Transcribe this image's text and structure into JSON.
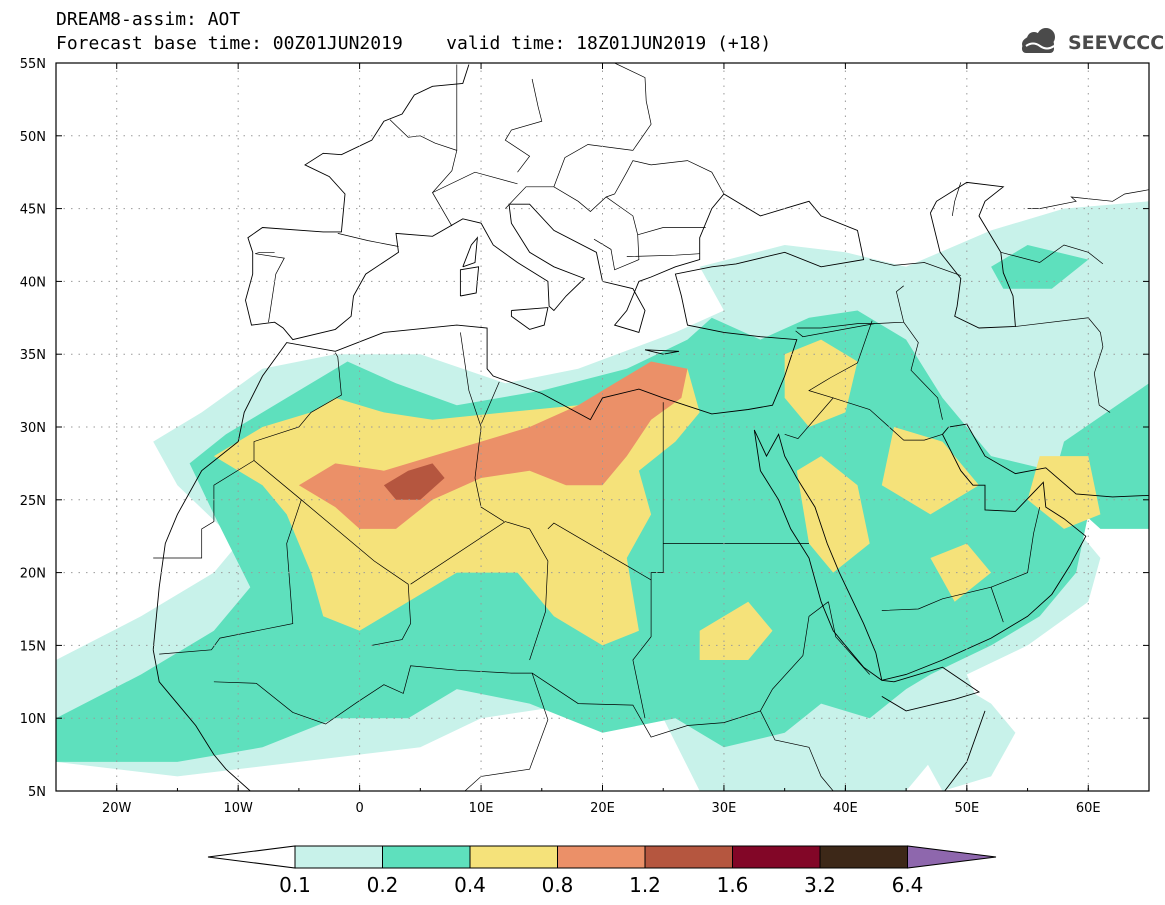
{
  "title": {
    "line1": "DREAM8-assim: AOT",
    "base_time": "Forecast base time: 00Z01JUN2019",
    "valid_time": "valid time: 18Z01JUN2019 (+18)"
  },
  "logo": {
    "text": "SEEVCCC",
    "icon": "cloud-logo-icon"
  },
  "axes": {
    "lon_range": [
      -25,
      65
    ],
    "lat_range": [
      5,
      55
    ],
    "lon_ticks": [
      {
        "v": -20,
        "label": "20W"
      },
      {
        "v": -10,
        "label": "10W"
      },
      {
        "v": 0,
        "label": "0"
      },
      {
        "v": 10,
        "label": "10E"
      },
      {
        "v": 20,
        "label": "20E"
      },
      {
        "v": 30,
        "label": "30E"
      },
      {
        "v": 40,
        "label": "40E"
      },
      {
        "v": 50,
        "label": "50E"
      },
      {
        "v": 60,
        "label": "60E"
      }
    ],
    "lat_ticks": [
      {
        "v": 5,
        "label": "5N"
      },
      {
        "v": 10,
        "label": "10N"
      },
      {
        "v": 15,
        "label": "15N"
      },
      {
        "v": 20,
        "label": "20N"
      },
      {
        "v": 25,
        "label": "25N"
      },
      {
        "v": 30,
        "label": "30N"
      },
      {
        "v": 35,
        "label": "35N"
      },
      {
        "v": 40,
        "label": "40N"
      },
      {
        "v": 45,
        "label": "45N"
      },
      {
        "v": 50,
        "label": "50N"
      },
      {
        "v": 55,
        "label": "55N"
      }
    ],
    "grid": "dotted"
  },
  "colorbar": {
    "labels": [
      "0.1",
      "0.2",
      "0.4",
      "0.8",
      "1.2",
      "1.6",
      "3.2",
      "6.4"
    ],
    "colors": [
      "#ffffff",
      "#c8f2ea",
      "#5ee0bd",
      "#f5e27a",
      "#eb9068",
      "#b5563f",
      "#820627",
      "#3d2818",
      "#8e67ad"
    ]
  },
  "field": {
    "levels": [
      {
        "level": 1,
        "color": "#c8f2ea",
        "polygons": [
          [
            [
              -25,
              14
            ],
            [
              -18,
              17
            ],
            [
              -12,
              20
            ],
            [
              -10,
              22
            ],
            [
              -15,
              26
            ],
            [
              -17,
              29
            ],
            [
              -13,
              31
            ],
            [
              -8,
              34
            ],
            [
              -2,
              35
            ],
            [
              5,
              35
            ],
            [
              12,
              33
            ],
            [
              18,
              34
            ],
            [
              26,
              36.5
            ],
            [
              30,
              38
            ],
            [
              28,
              41
            ],
            [
              35,
              42.5
            ],
            [
              40,
              42
            ],
            [
              45,
              41
            ],
            [
              52,
              43.5
            ],
            [
              58,
              45
            ],
            [
              65,
              45.5
            ],
            [
              65,
              33
            ],
            [
              60,
              30
            ],
            [
              57,
              25
            ],
            [
              61,
              21
            ],
            [
              60,
              18
            ],
            [
              55,
              15
            ],
            [
              50,
              13
            ],
            [
              52,
              9
            ],
            [
              47,
              7
            ],
            [
              45,
              5
            ],
            [
              28,
              5
            ],
            [
              25,
              10
            ],
            [
              18,
              11
            ],
            [
              10,
              10
            ],
            [
              5,
              8
            ],
            [
              -5,
              7
            ],
            [
              -15,
              6
            ],
            [
              -25,
              7
            ]
          ],
          [
            [
              45,
              16
            ],
            [
              48,
              13
            ],
            [
              52,
              11
            ],
            [
              54,
              9
            ],
            [
              52,
              6
            ],
            [
              48,
              5
            ],
            [
              46,
              8
            ],
            [
              44,
              12
            ]
          ]
        ]
      },
      {
        "level": 2,
        "color": "#5ee0bd",
        "polygons": [
          [
            [
              -25,
              10
            ],
            [
              -18,
              13
            ],
            [
              -12,
              16
            ],
            [
              -9,
              19
            ],
            [
              -12,
              24
            ],
            [
              -14,
              27.5
            ],
            [
              -11,
              29.5
            ],
            [
              -6,
              32
            ],
            [
              -1,
              34.5
            ],
            [
              3,
              33
            ],
            [
              8,
              31.5
            ],
            [
              15,
              32.5
            ],
            [
              22,
              34
            ],
            [
              27,
              36
            ],
            [
              29,
              37.5
            ],
            [
              33,
              36
            ],
            [
              37,
              37.5
            ],
            [
              41,
              38
            ],
            [
              45,
              36
            ],
            [
              48,
              32
            ],
            [
              52,
              28
            ],
            [
              57,
              27
            ],
            [
              60,
              24
            ],
            [
              59,
              20
            ],
            [
              56,
              17
            ],
            [
              52,
              15
            ],
            [
              47,
              13
            ],
            [
              45,
              12
            ],
            [
              42,
              10
            ],
            [
              38,
              11
            ],
            [
              35,
              9
            ],
            [
              30,
              8
            ],
            [
              26,
              10
            ],
            [
              20,
              9
            ],
            [
              14,
              11
            ],
            [
              8,
              12
            ],
            [
              4,
              10
            ],
            [
              -2,
              10
            ],
            [
              -8,
              8
            ],
            [
              -15,
              7
            ],
            [
              -25,
              7
            ]
          ],
          [
            [
              52,
              41
            ],
            [
              55,
              42.5
            ],
            [
              60,
              41.5
            ],
            [
              57,
              39.5
            ],
            [
              53,
              39.5
            ]
          ],
          [
            [
              58,
              29
            ],
            [
              65,
              33
            ],
            [
              65,
              23
            ],
            [
              61,
              23
            ],
            [
              57,
              26
            ]
          ]
        ]
      },
      {
        "level": 3,
        "color": "#f5e27a",
        "polygons": [
          [
            [
              -12,
              28
            ],
            [
              -8,
              30
            ],
            [
              -4,
              31
            ],
            [
              -2,
              32
            ],
            [
              2,
              31
            ],
            [
              6,
              30.5
            ],
            [
              12,
              31
            ],
            [
              18,
              31.5
            ],
            [
              24,
              34
            ],
            [
              27,
              34
            ],
            [
              28,
              31
            ],
            [
              26,
              29
            ],
            [
              23,
              27
            ],
            [
              24,
              24
            ],
            [
              22,
              21
            ],
            [
              23,
              16
            ],
            [
              20,
              15
            ],
            [
              16,
              17
            ],
            [
              13,
              20
            ],
            [
              8,
              20
            ],
            [
              4,
              18
            ],
            [
              0,
              16
            ],
            [
              -3,
              17
            ],
            [
              -4,
              20
            ],
            [
              -6,
              24
            ],
            [
              -8,
              26
            ]
          ],
          [
            [
              35,
              35
            ],
            [
              38,
              36
            ],
            [
              41,
              34.5
            ],
            [
              40,
              31
            ],
            [
              37,
              30
            ],
            [
              35,
              32
            ]
          ],
          [
            [
              44,
              30
            ],
            [
              48,
              29
            ],
            [
              51,
              26
            ],
            [
              47,
              24
            ],
            [
              43,
              26
            ]
          ],
          [
            [
              36,
              27
            ],
            [
              38,
              28
            ],
            [
              41,
              26
            ],
            [
              42,
              22
            ],
            [
              39,
              20
            ],
            [
              37,
              22
            ]
          ],
          [
            [
              28,
              16
            ],
            [
              32,
              18
            ],
            [
              34,
              16
            ],
            [
              32,
              14
            ],
            [
              28,
              14
            ]
          ],
          [
            [
              56,
              28
            ],
            [
              60,
              28
            ],
            [
              61,
              24
            ],
            [
              58,
              23
            ],
            [
              55,
              25
            ]
          ],
          [
            [
              47,
              21
            ],
            [
              50,
              22
            ],
            [
              52,
              20
            ],
            [
              49,
              18
            ]
          ]
        ]
      },
      {
        "level": 4,
        "color": "#eb9068",
        "polygons": [
          [
            [
              -5,
              26
            ],
            [
              -2,
              27.5
            ],
            [
              2,
              27
            ],
            [
              6,
              28
            ],
            [
              10,
              29
            ],
            [
              14,
              30
            ],
            [
              18,
              31.5
            ],
            [
              21,
              33
            ],
            [
              24,
              34.5
            ],
            [
              27,
              34
            ],
            [
              26.5,
              32
            ],
            [
              24,
              30.5
            ],
            [
              22,
              28
            ],
            [
              20,
              26
            ],
            [
              17,
              26
            ],
            [
              14,
              27
            ],
            [
              10,
              26.5
            ],
            [
              6,
              25
            ],
            [
              3,
              23
            ],
            [
              0,
              23
            ],
            [
              -2,
              24.5
            ]
          ]
        ]
      },
      {
        "level": 5,
        "color": "#b5563f",
        "polygons": [
          [
            [
              2,
              26
            ],
            [
              4,
              27
            ],
            [
              6,
              27.5
            ],
            [
              7,
              26.5
            ],
            [
              5,
              25
            ],
            [
              3,
              25
            ]
          ]
        ]
      }
    ]
  }
}
